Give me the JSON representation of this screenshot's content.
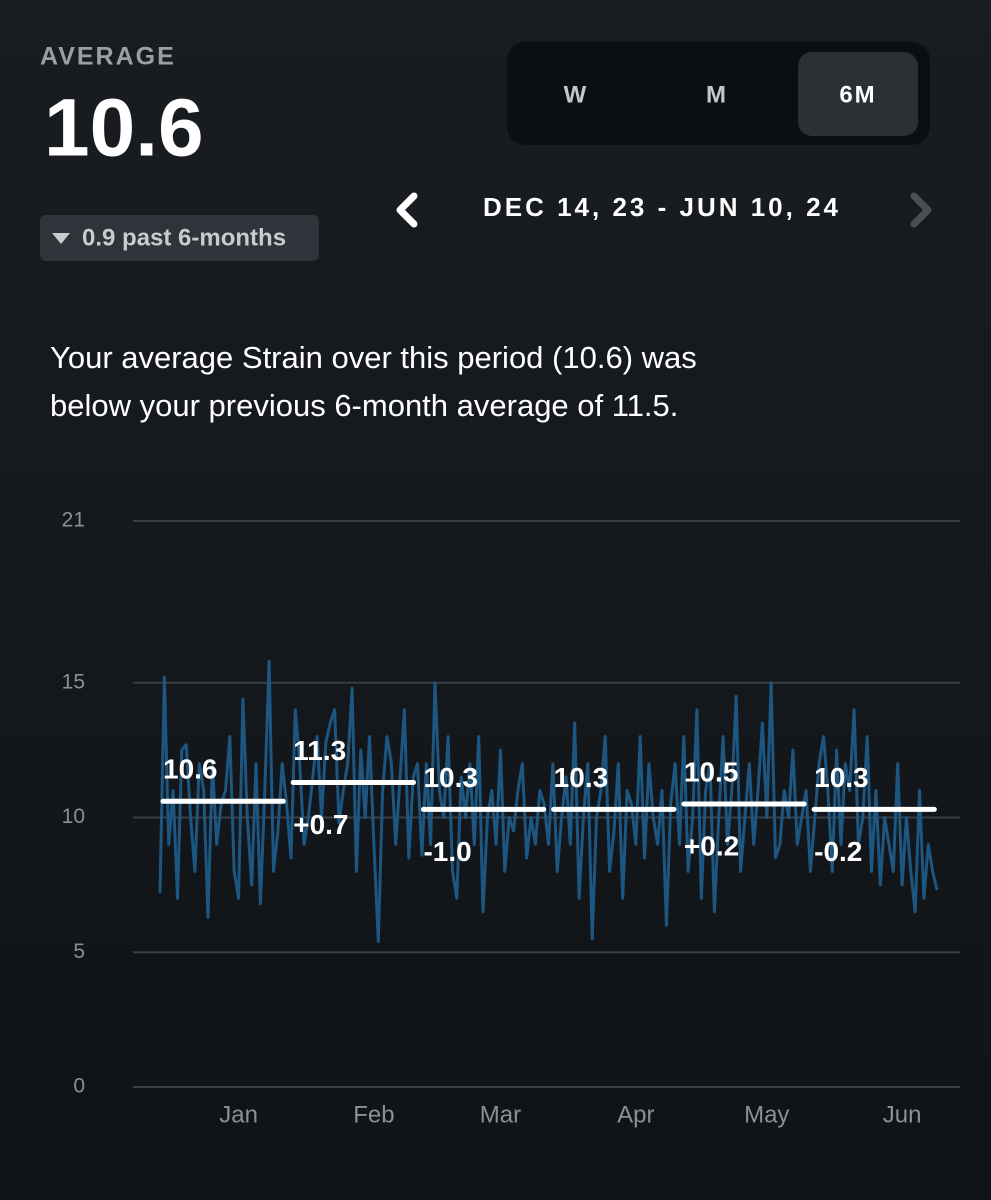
{
  "header": {
    "average_label": "AVERAGE",
    "average_value": "10.6",
    "change": "0.9 past 6-months",
    "tabs": [
      "W",
      "M",
      "6M"
    ],
    "active_tab": 2,
    "date_range": "DEC 14, 23 - JUN 10, 24",
    "summary": [
      "Your average Strain over this period (10.6) was",
      "below your previous 6-month average of 11.5."
    ]
  },
  "chart_data": {
    "type": "line",
    "ylim": [
      0,
      21
    ],
    "yticks": [
      0,
      5,
      10,
      15,
      21
    ],
    "grid": true,
    "xlim": [
      0,
      178
    ],
    "xticks": [
      {
        "value": 18,
        "label": "Jan"
      },
      {
        "value": 49,
        "label": "Feb"
      },
      {
        "value": 78,
        "label": "Mar"
      },
      {
        "value": 109,
        "label": "Apr"
      },
      {
        "value": 139,
        "label": "May"
      },
      {
        "value": 170,
        "label": "Jun"
      }
    ],
    "series": [
      {
        "color": "#1d5680",
        "values": [
          7.2,
          15.2,
          9,
          11,
          7,
          12.5,
          12.7,
          10,
          8,
          12,
          11,
          6.3,
          12,
          9,
          10.5,
          11,
          13,
          8,
          7,
          14.4,
          10,
          7.5,
          12,
          6.8,
          11,
          15.8,
          8,
          9.5,
          12,
          10.5,
          8.5,
          14,
          12,
          9,
          10,
          11.5,
          13,
          10,
          12.8,
          13.5,
          14,
          9.8,
          11,
          12,
          14.8,
          8,
          12.5,
          10,
          13,
          9,
          5.4,
          11,
          13,
          12,
          9,
          11.5,
          14,
          8.5,
          11.5,
          12,
          8.6,
          12,
          9,
          15,
          11,
          10,
          13,
          8,
          7,
          11.5,
          10,
          12,
          9,
          13,
          6.5,
          10,
          11,
          9,
          12.5,
          8,
          10,
          9.5,
          11,
          12,
          8.5,
          10,
          9,
          11,
          10.5,
          9,
          12,
          8,
          10,
          11.5,
          9,
          13.5,
          7,
          10,
          12,
          5.5,
          10,
          11,
          13,
          8,
          9.5,
          12,
          7,
          11,
          10.5,
          9,
          13,
          8.5,
          12,
          10,
          9,
          11,
          6,
          10.5,
          12,
          9,
          13,
          8,
          10,
          14,
          7,
          11,
          12,
          6.5,
          10,
          13,
          9,
          11,
          14.5,
          8,
          10,
          12,
          9,
          11,
          13.5,
          10,
          15,
          8.5,
          9,
          11,
          10,
          12.5,
          9,
          10,
          11,
          8,
          10,
          12,
          13,
          11,
          8,
          12.5,
          9,
          12,
          11,
          14,
          9,
          10,
          13,
          8,
          11,
          7.5,
          10,
          9,
          8,
          12,
          7.5,
          10,
          8,
          6.5,
          11,
          7,
          9,
          8,
          7.3
        ]
      },
      {
        "color": "#ffffff",
        "values": [
          10.6,
          11.3,
          10.3,
          10.3,
          10.5,
          10.3
        ],
        "changes": [
          null,
          "+0.7",
          "-1.0",
          null,
          "+0.2",
          "-0.2"
        ]
      }
    ]
  }
}
